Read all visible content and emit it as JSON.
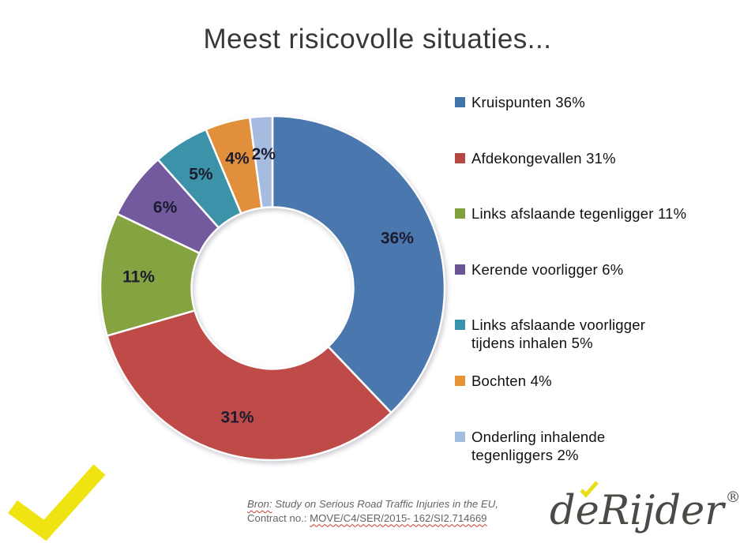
{
  "title": "Meest risicovolle situaties...",
  "chart_data": {
    "type": "pie",
    "subtype": "donut",
    "title": "Meest risicovolle situaties...",
    "start_angle_deg": 0,
    "direction": "clockwise",
    "inner_radius_ratio": 0.47,
    "legend_position": "right",
    "unit": "%",
    "categories": [
      "Kruispunten",
      "Afdekongevallen",
      "Links afslaande tegenligger",
      "Kerende voorligger",
      "Links afslaande voorligger tijdens inhalen",
      "Bochten",
      "Onderling inhalende tegenliggers"
    ],
    "values": [
      36,
      31,
      11,
      6,
      5,
      4,
      2
    ],
    "slice_labels": [
      "36%",
      "31%",
      "11%",
      "6%",
      "5%",
      "4%",
      "2%"
    ],
    "colors": [
      "#4a77ae",
      "#be4b48",
      "#85a341",
      "#73599e",
      "#3c93a9",
      "#e18f3b",
      "#a5bce0"
    ],
    "slice_label_color": "#1c1c2e",
    "legend": [
      {
        "lines": [
          "Kruispunten 36%"
        ],
        "color": "#4173ac"
      },
      {
        "lines": [
          "Afdekongevallen 31%"
        ],
        "color": "#b94741"
      },
      {
        "lines": [
          "Links afslaande tegenligger 11%"
        ],
        "color": "#80a03d"
      },
      {
        "lines": [
          "Kerende voorligger 6%"
        ],
        "color": "#6a5496"
      },
      {
        "lines": [
          "Links afslaande voorligger",
          "tijdens inhalen 5%"
        ],
        "color": "#3793ae"
      },
      {
        "lines": [
          "Bochten 4%"
        ],
        "color": "#ea9334"
      },
      {
        "lines": [
          "Onderling inhalende",
          "tegenliggers 2%"
        ],
        "color": "#a2bce2"
      }
    ]
  },
  "source": {
    "label": "Bron:",
    "line1_rest": " Study on Serious Road Traffic Injuries in the EU,",
    "line2_label": "Contract no.: ",
    "line2_value": "MOVE/C4/SER/2015- 162/SI2.714669"
  },
  "logo": {
    "part1": "de",
    "part2": "Rijder",
    "registered": "®",
    "brand_color": "#4b4a45",
    "check_color": "#e7de19"
  },
  "decorations": {
    "checkmark_color": "#efe412"
  }
}
